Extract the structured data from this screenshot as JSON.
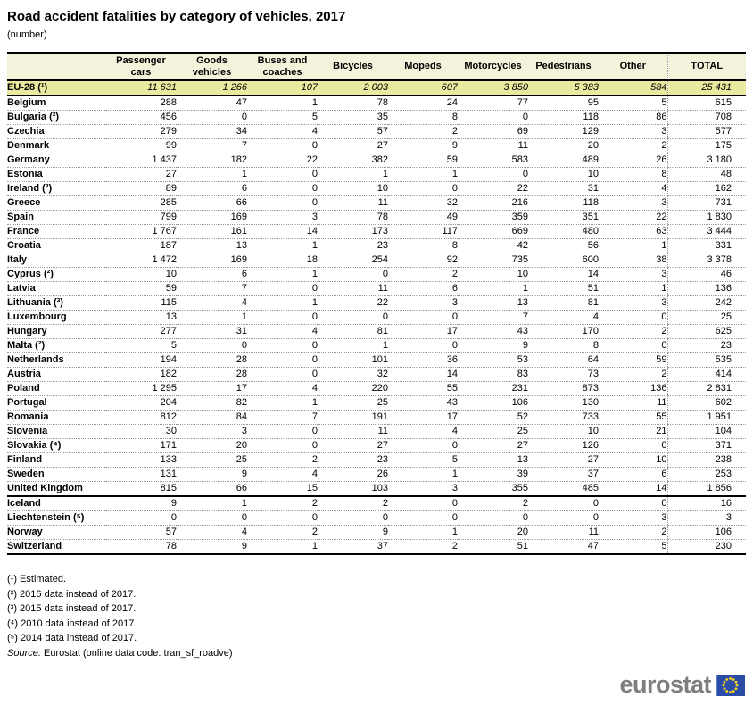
{
  "title": "Road accident fatalities by category of vehicles, 2017",
  "subtitle": "(number)",
  "colors": {
    "header_bg": "#F3F3DC",
    "highlight_row_bg": "#E9E99F",
    "dotted_line": "#9a9a9a",
    "logo_gray": "#7E7E7E",
    "flag_blue": "#2B4DA8",
    "flag_accent_blue": "#5F7FC7",
    "star_yellow": "#FFD617"
  },
  "chart_data": {
    "type": "table",
    "title": "Road accident fatalities by category of vehicles, 2017",
    "unit": "(number)",
    "columns": [
      "Passenger cars",
      "Goods vehicles",
      "Buses and coaches",
      "Bicycles",
      "Mopeds",
      "Motorcycles",
      "Pedestrians",
      "Other",
      "TOTAL"
    ],
    "aggregate": {
      "label": "EU-28 (¹)",
      "values": [
        11631,
        1266,
        107,
        2003,
        607,
        3850,
        5383,
        584,
        25431
      ]
    },
    "groups": [
      {
        "name": "eu-countries",
        "rows": [
          {
            "label": "Belgium",
            "values": [
              288,
              47,
              1,
              78,
              24,
              77,
              95,
              5,
              615
            ]
          },
          {
            "label": "Bulgaria (²)",
            "values": [
              456,
              0,
              5,
              35,
              8,
              0,
              118,
              86,
              708
            ]
          },
          {
            "label": "Czechia",
            "values": [
              279,
              34,
              4,
              57,
              2,
              69,
              129,
              3,
              577
            ]
          },
          {
            "label": "Denmark",
            "values": [
              99,
              7,
              0,
              27,
              9,
              11,
              20,
              2,
              175
            ]
          },
          {
            "label": "Germany",
            "values": [
              1437,
              182,
              22,
              382,
              59,
              583,
              489,
              26,
              3180
            ]
          },
          {
            "label": "Estonia",
            "values": [
              27,
              1,
              0,
              1,
              1,
              0,
              10,
              8,
              48
            ]
          },
          {
            "label": "Ireland (³)",
            "values": [
              89,
              6,
              0,
              10,
              0,
              22,
              31,
              4,
              162
            ]
          },
          {
            "label": "Greece",
            "values": [
              285,
              66,
              0,
              11,
              32,
              216,
              118,
              3,
              731
            ]
          },
          {
            "label": "Spain",
            "values": [
              799,
              169,
              3,
              78,
              49,
              359,
              351,
              22,
              1830
            ]
          },
          {
            "label": "France",
            "values": [
              1767,
              161,
              14,
              173,
              117,
              669,
              480,
              63,
              3444
            ]
          },
          {
            "label": "Croatia",
            "values": [
              187,
              13,
              1,
              23,
              8,
              42,
              56,
              1,
              331
            ]
          },
          {
            "label": "Italy",
            "values": [
              1472,
              169,
              18,
              254,
              92,
              735,
              600,
              38,
              3378
            ]
          },
          {
            "label": "Cyprus (²)",
            "values": [
              10,
              6,
              1,
              0,
              2,
              10,
              14,
              3,
              46
            ]
          },
          {
            "label": "Latvia",
            "values": [
              59,
              7,
              0,
              11,
              6,
              1,
              51,
              1,
              136
            ]
          },
          {
            "label": "Lithuania (³)",
            "values": [
              115,
              4,
              1,
              22,
              3,
              13,
              81,
              3,
              242
            ]
          },
          {
            "label": "Luxembourg",
            "values": [
              13,
              1,
              0,
              0,
              0,
              7,
              4,
              0,
              25
            ]
          },
          {
            "label": "Hungary",
            "values": [
              277,
              31,
              4,
              81,
              17,
              43,
              170,
              2,
              625
            ]
          },
          {
            "label": "Malta (²)",
            "values": [
              5,
              0,
              0,
              1,
              0,
              9,
              8,
              0,
              23
            ]
          },
          {
            "label": "Netherlands",
            "values": [
              194,
              28,
              0,
              101,
              36,
              53,
              64,
              59,
              535
            ]
          },
          {
            "label": "Austria",
            "values": [
              182,
              28,
              0,
              32,
              14,
              83,
              73,
              2,
              414
            ]
          },
          {
            "label": "Poland",
            "values": [
              1295,
              17,
              4,
              220,
              55,
              231,
              873,
              136,
              2831
            ]
          },
          {
            "label": "Portugal",
            "values": [
              204,
              82,
              1,
              25,
              43,
              106,
              130,
              11,
              602
            ]
          },
          {
            "label": "Romania",
            "values": [
              812,
              84,
              7,
              191,
              17,
              52,
              733,
              55,
              1951
            ]
          },
          {
            "label": "Slovenia",
            "values": [
              30,
              3,
              0,
              11,
              4,
              25,
              10,
              21,
              104
            ]
          },
          {
            "label": "Slovakia (⁴)",
            "values": [
              171,
              20,
              0,
              27,
              0,
              27,
              126,
              0,
              371
            ]
          },
          {
            "label": "Finland",
            "values": [
              133,
              25,
              2,
              23,
              5,
              13,
              27,
              10,
              238
            ]
          },
          {
            "label": "Sweden",
            "values": [
              131,
              9,
              4,
              26,
              1,
              39,
              37,
              6,
              253
            ]
          },
          {
            "label": "United Kingdom",
            "values": [
              815,
              66,
              15,
              103,
              3,
              355,
              485,
              14,
              1856
            ]
          }
        ]
      },
      {
        "name": "efta-countries",
        "rows": [
          {
            "label": "Iceland",
            "values": [
              9,
              1,
              2,
              2,
              0,
              2,
              0,
              0,
              16
            ]
          },
          {
            "label": "Liechtenstein (⁵)",
            "values": [
              0,
              0,
              0,
              0,
              0,
              0,
              0,
              3,
              3
            ]
          },
          {
            "label": "Norway",
            "values": [
              57,
              4,
              2,
              9,
              1,
              20,
              11,
              2,
              106
            ]
          },
          {
            "label": "Switzerland",
            "values": [
              78,
              9,
              1,
              37,
              2,
              51,
              47,
              5,
              230
            ]
          }
        ]
      }
    ]
  },
  "footnotes": [
    "(¹) Estimated.",
    "(²) 2016 data instead of 2017.",
    "(³) 2015 data instead of 2017.",
    "(⁴) 2010 data instead of 2017.",
    "(⁵) 2014 data instead of 2017."
  ],
  "source": {
    "label": "Source:",
    "text": " Eurostat (online data code: tran_sf_roadve)"
  },
  "logo": {
    "text": "eurostat"
  }
}
